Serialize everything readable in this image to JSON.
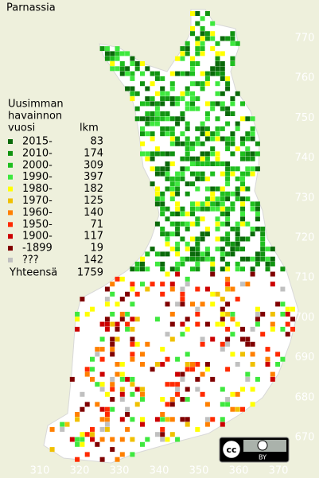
{
  "title": "Parnassia",
  "legend": {
    "header": [
      "Uusimman",
      "havainnon",
      "vuosi"
    ],
    "count_header": "lkm",
    "rows": [
      {
        "label": "2015-",
        "count": 83,
        "color": "#0a6a0a"
      },
      {
        "label": "2010-",
        "count": 174,
        "color": "#119411"
      },
      {
        "label": "2000-",
        "count": 309,
        "color": "#1fbf1f"
      },
      {
        "label": "1990-",
        "count": 397,
        "color": "#3ee83e"
      },
      {
        "label": "1980-",
        "count": 182,
        "color": "#ffff00"
      },
      {
        "label": "1970-",
        "count": 125,
        "color": "#f0c000"
      },
      {
        "label": "1960-",
        "count": 140,
        "color": "#ff8000"
      },
      {
        "label": "1950-",
        "count": 71,
        "color": "#ff2a00"
      },
      {
        "label": "1900-",
        "count": 117,
        "color": "#cc0000"
      },
      {
        "label": "-1899",
        "count": 19,
        "color": "#800000"
      },
      {
        "label": "???",
        "count": 142,
        "color": "#c0c0c0"
      }
    ],
    "total_label": "Yhteensä",
    "total": 1759
  },
  "axes": {
    "x_labels": [
      310,
      320,
      330,
      340,
      350,
      360,
      370
    ],
    "y_labels": [
      770,
      760,
      750,
      740,
      730,
      720,
      710,
      700,
      690,
      680,
      670
    ]
  },
  "license": {
    "cc": "cc",
    "by": "BY"
  }
}
